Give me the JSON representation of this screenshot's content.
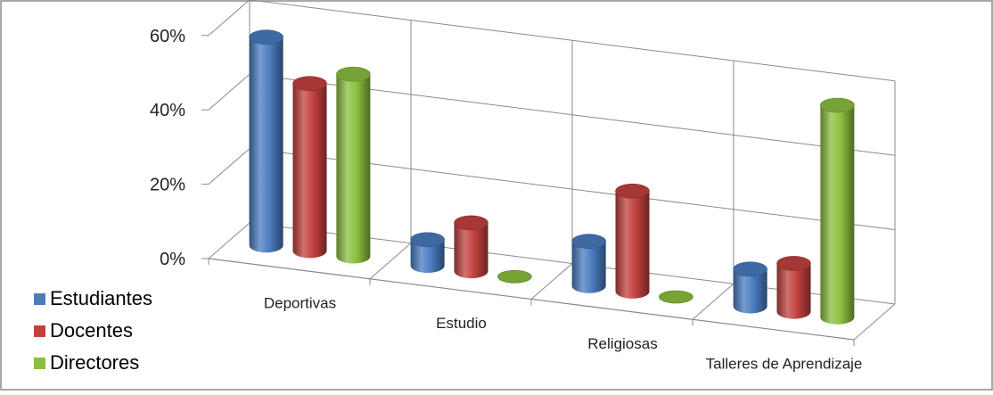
{
  "chart_data": {
    "type": "bar",
    "style": "3d-cylinder",
    "categories": [
      "Deportivas",
      "Estudio",
      "Religiosas",
      "Talleres de Aprendizaje"
    ],
    "series": [
      {
        "name": "Estudiantes",
        "color": "#4a7cc0",
        "values": [
          56,
          7,
          12,
          10
        ]
      },
      {
        "name": "Docentes",
        "color": "#c2413e",
        "values": [
          45,
          13,
          27,
          13
        ]
      },
      {
        "name": "Directores",
        "color": "#8cbf3f",
        "values": [
          49,
          0,
          0,
          57
        ]
      }
    ],
    "ylim": [
      0,
      60
    ],
    "yticks": [
      "0%",
      "20%",
      "40%",
      "60%"
    ],
    "grid": true,
    "legend": "left"
  }
}
